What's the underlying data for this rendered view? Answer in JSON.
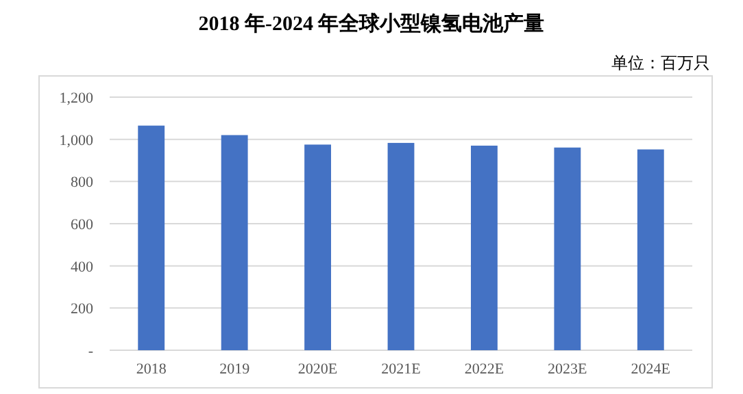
{
  "chart_data": {
    "type": "bar",
    "title": "2018 年-2024 年全球小型镍氢电池产量",
    "annotations": [
      "单位：百万只"
    ],
    "categories": [
      "2018",
      "2019",
      "2020E",
      "2021E",
      "2022E",
      "2023E",
      "2024E"
    ],
    "values": [
      1065,
      1020,
      975,
      983,
      970,
      961,
      952
    ],
    "color": "#4472c4",
    "ylim": [
      0,
      1200
    ],
    "yticks": [
      {
        "value": 0,
        "label": "-"
      },
      {
        "value": 200,
        "label": "200"
      },
      {
        "value": 400,
        "label": "400"
      },
      {
        "value": 600,
        "label": "600"
      },
      {
        "value": 800,
        "label": "800"
      },
      {
        "value": 1000,
        "label": "1,000"
      },
      {
        "value": 1200,
        "label": "1,200"
      }
    ],
    "grid": "y"
  }
}
